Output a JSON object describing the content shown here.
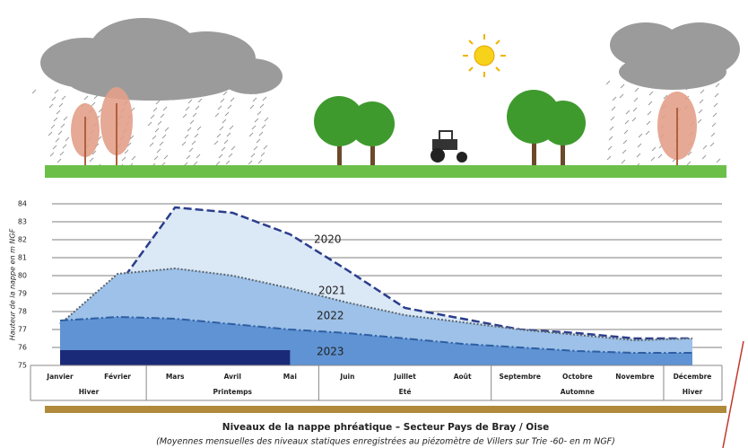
{
  "chart_data": {
    "type": "area",
    "title": "Niveaux de la nappe phréatique – Secteur Pays de Bray / Oise",
    "subtitle": "(Moyennes mensuelles des niveaux statiques enregistrées au piézomètre de Villers sur Trie -60- en m NGF)",
    "y_label": "Hauteur de la nappe en m NGF",
    "categories": [
      "Janvier",
      "Février",
      "Mars",
      "Avril",
      "Mai",
      "Juin",
      "Juillet",
      "Août",
      "Septembre",
      "Octobre",
      "Novembre",
      "Décembre"
    ],
    "seasons": [
      "Hiver",
      "Printemps",
      "Eté",
      "Automne",
      "Hiver"
    ],
    "series": [
      {
        "name": "2020",
        "color": "#dbe8f6",
        "line": "#2b3d8c",
        "values": [
          77.3,
          79.4,
          83.8,
          83.5,
          82.3,
          80.3,
          78.2,
          77.6,
          77.0,
          76.8,
          76.5,
          76.5
        ]
      },
      {
        "name": "2021",
        "color": "#9dc1e8",
        "line": "#5a6670",
        "values": [
          77.3,
          80.1,
          80.4,
          80.0,
          79.3,
          78.5,
          77.8,
          77.4,
          77.0,
          76.7,
          76.4,
          76.5
        ]
      },
      {
        "name": "2022",
        "color": "#5f93d3",
        "line": "#2f5ea3",
        "values": [
          77.5,
          77.7,
          77.6,
          77.3,
          77.0,
          76.8,
          76.5,
          76.2,
          76.0,
          75.8,
          75.7,
          75.7
        ]
      },
      {
        "name": "2023",
        "color": "#1b2a78",
        "line": "#1b2a78",
        "values": [
          75.8,
          75.8,
          75.8,
          75.8,
          75.8,
          null,
          null,
          null,
          null,
          null,
          null,
          null
        ]
      }
    ],
    "ylim": [
      75,
      84
    ],
    "yticks": [
      75,
      76,
      77,
      78,
      79,
      80,
      81,
      82,
      83,
      84
    ],
    "grid": true
  }
}
